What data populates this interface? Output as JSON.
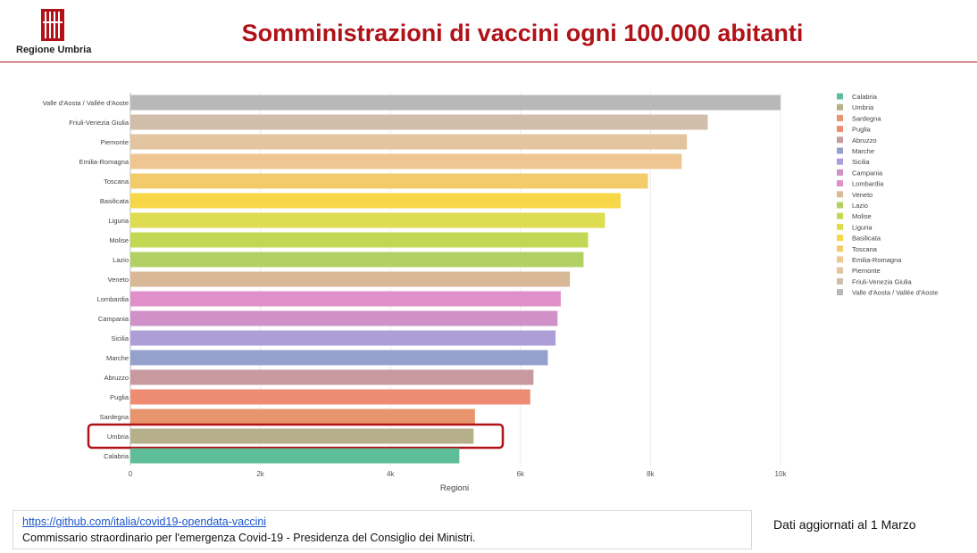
{
  "header": {
    "org_name": "Regione Umbria",
    "title": "Somministrazioni di vaccini ogni 100.000 abitanti"
  },
  "chart_data": {
    "type": "bar",
    "orientation": "horizontal",
    "title": "Somministrazioni di vaccini ogni 100.000 abitanti",
    "xlabel": "Regioni",
    "ylabel": "",
    "xlim": [
      0,
      10000
    ],
    "xticks": [
      0,
      2000,
      4000,
      6000,
      8000,
      10000
    ],
    "xtick_labels": [
      "0",
      "2k",
      "4k",
      "6k",
      "8k",
      "10k"
    ],
    "grid": "vertical",
    "legend_position": "right",
    "highlight": "Umbria",
    "colors": {
      "Calabria": "#5fbe9a",
      "Umbria": "#b5b08a",
      "Sardegna": "#e8946c",
      "Puglia": "#ee8c72",
      "Abruzzo": "#c89aa0",
      "Marche": "#95a0cc",
      "Sicilia": "#ad9ed8",
      "Campania": "#d090c8",
      "Lombardia": "#e090c8",
      "Veneto": "#d8b896",
      "Lazio": "#b2d064",
      "Molise": "#c2d854",
      "Liguria": "#dedc50",
      "Basilicata": "#f7d748",
      "Toscana": "#f2cc6a",
      "Emilia-Romagna": "#efc692",
      "Piemonte": "#e2c49e",
      "Friuli-Venezia Giulia": "#d0beaa",
      "Valle d'Aosta / Vallée d'Aoste": "#b8b8b8"
    },
    "categories": [
      "Valle d'Aosta / Vallée d'Aoste",
      "Friuli-Venezia Giulia",
      "Piemonte",
      "Emilia-Romagna",
      "Toscana",
      "Basilicata",
      "Liguria",
      "Molise",
      "Lazio",
      "Veneto",
      "Lombardia",
      "Campania",
      "Sicilia",
      "Marche",
      "Abruzzo",
      "Puglia",
      "Sardegna",
      "Umbria",
      "Calabria"
    ],
    "values": [
      10000,
      8880,
      8560,
      8480,
      7960,
      7540,
      7300,
      7040,
      6970,
      6760,
      6620,
      6570,
      6540,
      6420,
      6200,
      6150,
      5300,
      5280,
      5060
    ],
    "legend": [
      "Calabria",
      "Umbria",
      "Sardegna",
      "Puglia",
      "Abruzzo",
      "Marche",
      "Sicilia",
      "Campania",
      "Lombardia",
      "Veneto",
      "Lazio",
      "Molise",
      "Liguria",
      "Basilicata",
      "Toscana",
      "Emilia-Romagna",
      "Piemonte",
      "Friuli-Venezia Giulia",
      "Valle d'Aosta / Vallée d'Aoste"
    ]
  },
  "footer": {
    "link": "https://github.com/italia/covid19-opendata-vaccini",
    "credit": "Commissario straordinario per l'emergenza Covid-19 - Presidenza del Consiglio dei Ministri.",
    "updated": "Dati aggiornati al 1 Marzo"
  }
}
